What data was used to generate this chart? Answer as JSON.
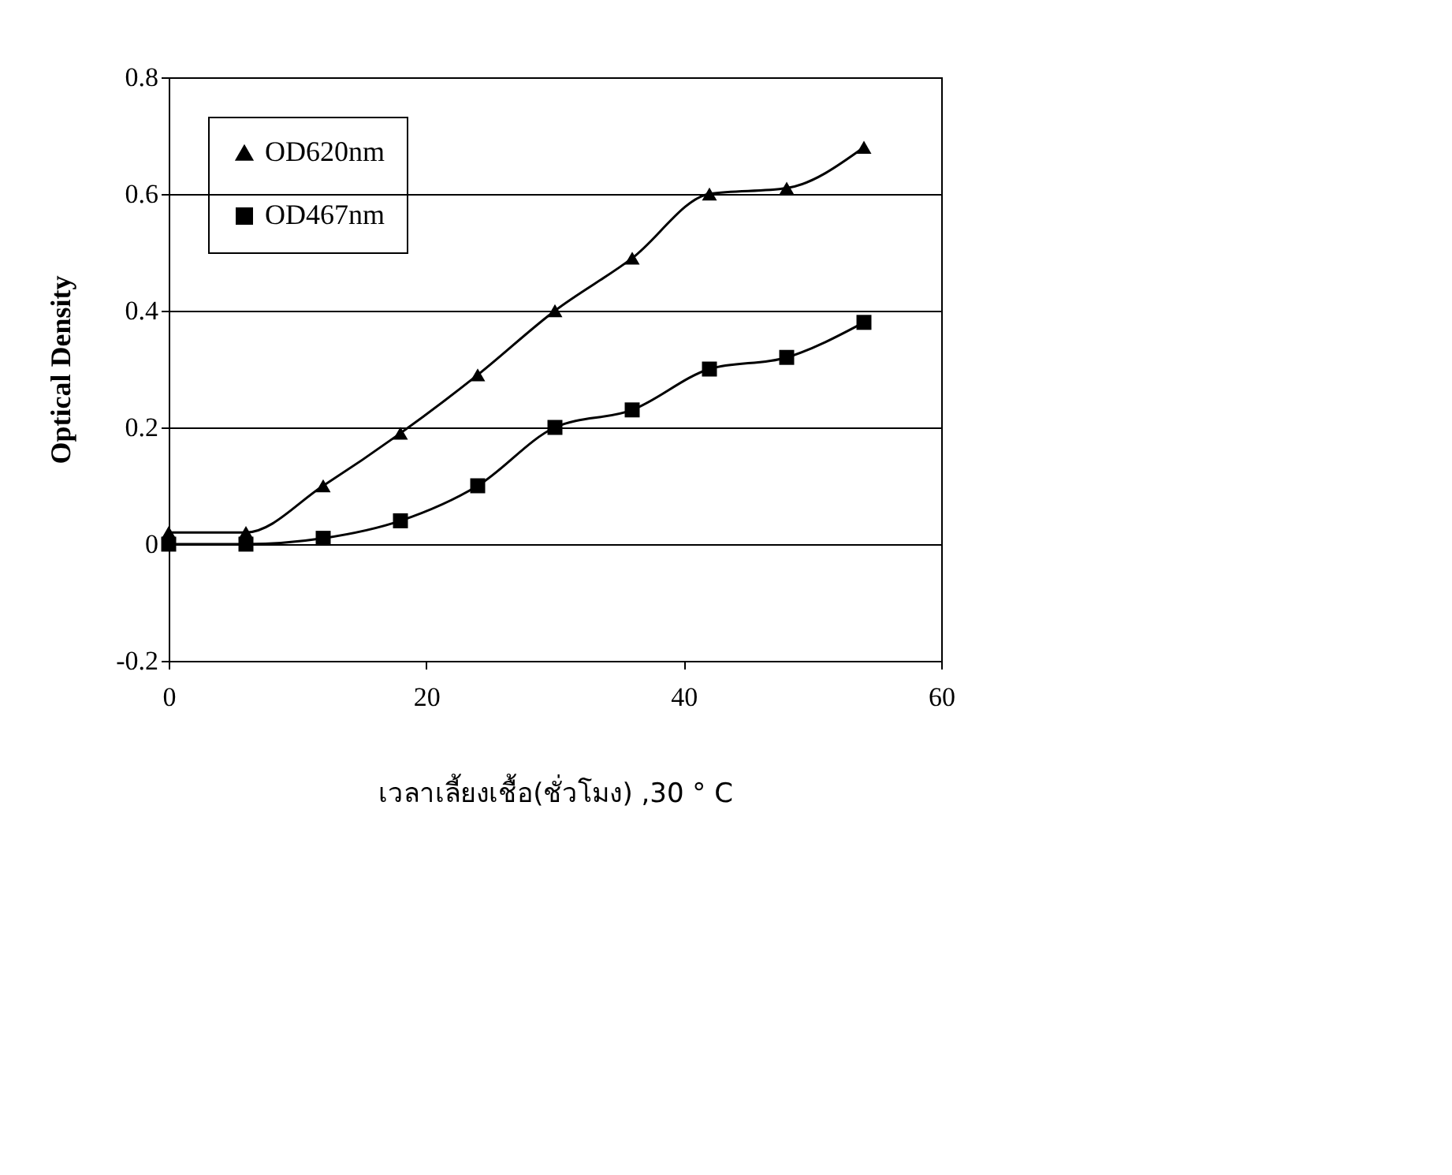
{
  "chart_data": {
    "type": "line",
    "xlabel": "เวลาเลี้ยงเชื้อ(ชั่วโมง) ,30 ° C",
    "ylabel": "Optical Density",
    "x": [
      0,
      6,
      12,
      18,
      24,
      30,
      36,
      42,
      48,
      54
    ],
    "series": [
      {
        "name": "OD620nm",
        "color": "#000000",
        "marker": "triangle",
        "values": [
          0.02,
          0.02,
          0.1,
          0.19,
          0.29,
          0.4,
          0.49,
          0.6,
          0.61,
          0.68
        ]
      },
      {
        "name": "OD467nm",
        "color": "#000000",
        "marker": "square",
        "values": [
          0,
          0,
          0.01,
          0.04,
          0.1,
          0.2,
          0.23,
          0.3,
          0.32,
          0.38
        ]
      }
    ],
    "xlim": [
      0,
      60
    ],
    "xticks": [
      0,
      20,
      40,
      60
    ],
    "ylim": [
      -0.2,
      0.8
    ],
    "yticks": [
      -0.2,
      0,
      0.2,
      0.4,
      0.6,
      0.8
    ],
    "grid": "y",
    "legend": "top left",
    "line_style": "solid"
  }
}
